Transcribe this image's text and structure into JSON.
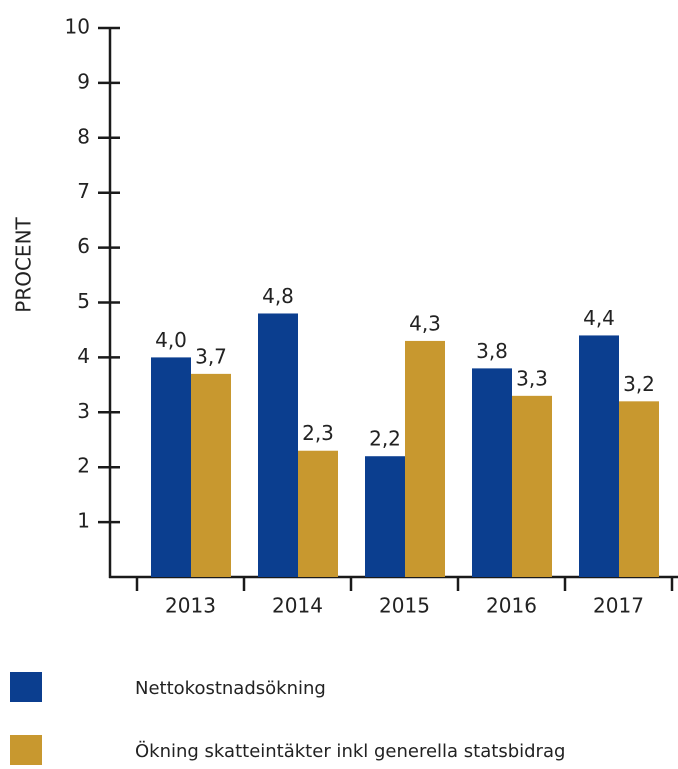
{
  "chart_data": {
    "type": "bar",
    "y_label": "PROCENT",
    "categories": [
      "2013",
      "2014",
      "2015",
      "2016",
      "2017"
    ],
    "series": [
      {
        "name": "Nettokostnadsökning",
        "color": "#0b3e8f",
        "values": [
          4.0,
          4.8,
          2.2,
          3.8,
          4.4
        ],
        "value_labels": [
          "4,0",
          "4,8",
          "2,2",
          "3,8",
          "4,4"
        ]
      },
      {
        "name": "Ökning skatteintäkter inkl generella statsbidrag",
        "color": "#c8982f",
        "values": [
          3.7,
          2.3,
          4.3,
          3.3,
          3.2
        ],
        "value_labels": [
          "3,7",
          "2,3",
          "4,3",
          "3,3",
          "3,2"
        ]
      }
    ],
    "ylim": [
      0,
      10
    ],
    "yticks": [
      1,
      2,
      3,
      4,
      5,
      6,
      7,
      8,
      9,
      10
    ]
  }
}
